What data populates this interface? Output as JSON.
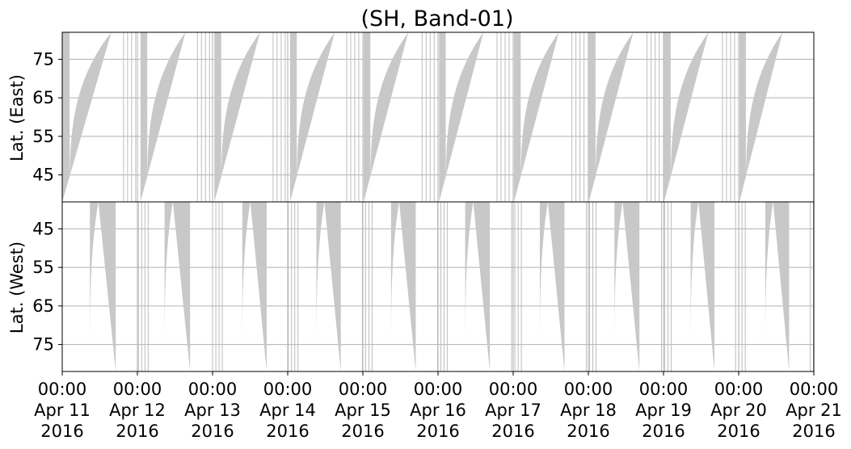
{
  "chart_data": {
    "type": "area",
    "title": "(SH, Band-01)",
    "x_ticks": [
      {
        "time": "00:00",
        "date": "Apr 11",
        "year": "2016"
      },
      {
        "time": "00:00",
        "date": "Apr 12",
        "year": "2016"
      },
      {
        "time": "00:00",
        "date": "Apr 13",
        "year": "2016"
      },
      {
        "time": "00:00",
        "date": "Apr 14",
        "year": "2016"
      },
      {
        "time": "00:00",
        "date": "Apr 15",
        "year": "2016"
      },
      {
        "time": "00:00",
        "date": "Apr 16",
        "year": "2016"
      },
      {
        "time": "00:00",
        "date": "Apr 17",
        "year": "2016"
      },
      {
        "time": "00:00",
        "date": "Apr 18",
        "year": "2016"
      },
      {
        "time": "00:00",
        "date": "Apr 19",
        "year": "2016"
      },
      {
        "time": "00:00",
        "date": "Apr 20",
        "year": "2016"
      },
      {
        "time": "00:00",
        "date": "Apr 21",
        "year": "2016"
      }
    ],
    "xlim": [
      "2016-04-11 00:00",
      "2016-04-21 00:00"
    ],
    "grid": true,
    "panels": [
      {
        "id": "east",
        "ylabel": "Lat. (East)",
        "ylim": [
          38,
          82
        ],
        "yticks": [
          45,
          55,
          65,
          75
        ],
        "y_inverted": false,
        "passes": [
          {
            "start": "2016-04-11 00:00",
            "edge": "2016-04-11 15:40"
          },
          {
            "start": "2016-04-12 01:00",
            "edge": "2016-04-12 15:20"
          },
          {
            "start": "2016-04-13 00:35",
            "edge": "2016-04-13 15:10"
          },
          {
            "start": "2016-04-14 00:45",
            "edge": "2016-04-14 15:00"
          },
          {
            "start": "2016-04-15 00:15",
            "edge": "2016-04-15 14:30"
          },
          {
            "start": "2016-04-16 00:20",
            "edge": "2016-04-16 14:30"
          },
          {
            "start": "2016-04-17 00:15",
            "edge": "2016-04-17 14:35"
          },
          {
            "start": "2016-04-18 00:10",
            "edge": "2016-04-18 14:20"
          },
          {
            "start": "2016-04-19 00:10",
            "edge": "2016-04-19 14:20"
          },
          {
            "start": "2016-04-20 00:15",
            "edge": "2016-04-20 14:00"
          }
        ]
      },
      {
        "id": "west",
        "ylabel": "Lat. (West)",
        "ylim": [
          38,
          82
        ],
        "yticks": [
          75,
          65,
          55,
          45
        ],
        "y_inverted": true,
        "passes": [
          {
            "edge": "2016-04-11 08:50",
            "end": "2016-04-11 23:50"
          },
          {
            "edge": "2016-04-12 08:40",
            "end": "2016-04-12 23:30"
          },
          {
            "edge": "2016-04-13 09:30",
            "end": "2016-04-13 23:40"
          },
          {
            "edge": "2016-04-14 09:10",
            "end": "2016-04-14 23:20"
          },
          {
            "edge": "2016-04-15 09:00",
            "end": "2016-04-15 23:20"
          },
          {
            "edge": "2016-04-16 08:40",
            "end": "2016-04-16 23:00"
          },
          {
            "edge": "2016-04-17 08:30",
            "end": "2016-04-17 22:50"
          },
          {
            "edge": "2016-04-18 08:20",
            "end": "2016-04-18 22:50"
          },
          {
            "edge": "2016-04-19 08:40",
            "end": "2016-04-19 22:30"
          },
          {
            "edge": "2016-04-20 08:30",
            "end": "2016-04-20 22:20"
          }
        ]
      }
    ]
  }
}
